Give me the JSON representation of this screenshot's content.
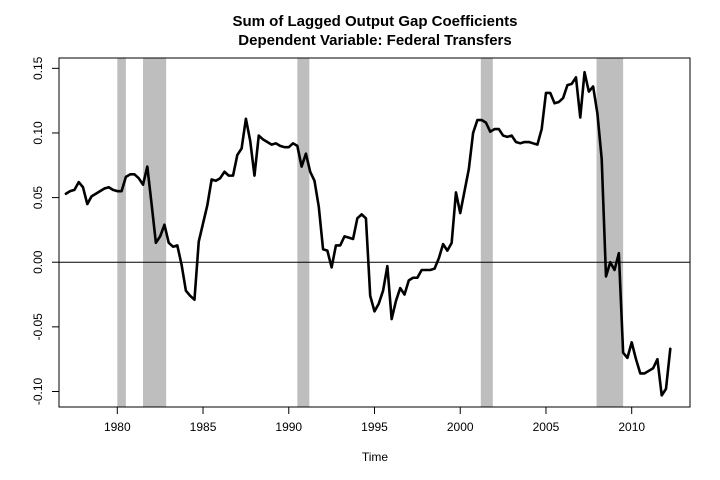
{
  "chart_data": {
    "type": "line",
    "title": "Sum of Lagged Output Gap Coefficients",
    "subtitle": "Dependent Variable: Federal Transfers",
    "xlabel": "Time",
    "ylabel": "",
    "xlim": [
      1976.6,
      2013.4
    ],
    "ylim": [
      -0.112,
      0.158
    ],
    "x_ticks": [
      1980,
      1985,
      1990,
      1995,
      2000,
      2005,
      2010
    ],
    "y_ticks": [
      -0.1,
      -0.05,
      0.0,
      0.05,
      0.1,
      0.15
    ],
    "x_tick_labels": [
      "1980",
      "1985",
      "1990",
      "1995",
      "2000",
      "2005",
      "2010"
    ],
    "y_tick_labels": [
      "-0.10",
      "-0.05",
      "0.00",
      "0.05",
      "0.10",
      "0.15"
    ],
    "grid": false,
    "reference_line": {
      "y": 0,
      "color": "#000000"
    },
    "recession_bands": [
      [
        1980.0,
        1980.5
      ],
      [
        1981.5,
        1982.85
      ],
      [
        1990.5,
        1991.2
      ],
      [
        2001.2,
        2001.9
      ],
      [
        2007.95,
        2009.5
      ]
    ],
    "colors": {
      "series": "#000000",
      "band": "#bebebe"
    },
    "series": [
      {
        "x": [
          1977.0,
          1977.25,
          1977.5,
          1977.75,
          1978.0,
          1978.25,
          1978.5,
          1978.75,
          1979.0,
          1979.25,
          1979.5,
          1979.75,
          1980.0,
          1980.25,
          1980.5,
          1980.75,
          1981.0,
          1981.25,
          1981.5,
          1981.75,
          1982.0,
          1982.25,
          1982.5,
          1982.75,
          1983.0,
          1983.25,
          1983.5,
          1983.75,
          1984.0,
          1984.25,
          1984.5,
          1984.75,
          1985.0,
          1985.25,
          1985.5,
          1985.75,
          1986.0,
          1986.25,
          1986.5,
          1986.75,
          1987.0,
          1987.25,
          1987.5,
          1987.75,
          1988.0,
          1988.25,
          1988.5,
          1988.75,
          1989.0,
          1989.25,
          1989.5,
          1989.75,
          1990.0,
          1990.25,
          1990.5,
          1990.75,
          1991.0,
          1991.25,
          1991.5,
          1991.75,
          1992.0,
          1992.25,
          1992.5,
          1992.75,
          1993.0,
          1993.25,
          1993.5,
          1993.75,
          1994.0,
          1994.25,
          1994.5,
          1994.75,
          1995.0,
          1995.25,
          1995.5,
          1995.75,
          1996.0,
          1996.25,
          1996.5,
          1996.75,
          1997.0,
          1997.25,
          1997.5,
          1997.75,
          1998.0,
          1998.25,
          1998.5,
          1998.75,
          1999.0,
          1999.25,
          1999.5,
          1999.75,
          2000.0,
          2000.25,
          2000.5,
          2000.75,
          2001.0,
          2001.25,
          2001.5,
          2001.75,
          2002.0,
          2002.25,
          2002.5,
          2002.75,
          2003.0,
          2003.25,
          2003.5,
          2003.75,
          2004.0,
          2004.25,
          2004.5,
          2004.75,
          2005.0,
          2005.25,
          2005.5,
          2005.75,
          2006.0,
          2006.25,
          2006.5,
          2006.75,
          2007.0,
          2007.25,
          2007.5,
          2007.75,
          2008.0,
          2008.25,
          2008.5,
          2008.75,
          2009.0,
          2009.25,
          2009.5,
          2009.75,
          2010.0,
          2010.25,
          2010.5,
          2010.75,
          2011.0,
          2011.25,
          2011.5,
          2011.75,
          2012.0,
          2012.25
        ],
        "y": [
          0.053,
          0.055,
          0.056,
          0.062,
          0.058,
          0.045,
          0.051,
          0.053,
          0.055,
          0.057,
          0.058,
          0.056,
          0.055,
          0.055,
          0.066,
          0.068,
          0.068,
          0.065,
          0.06,
          0.074,
          0.045,
          0.015,
          0.02,
          0.029,
          0.015,
          0.012,
          0.013,
          -0.002,
          -0.022,
          -0.026,
          -0.029,
          0.016,
          0.03,
          0.044,
          0.064,
          0.063,
          0.065,
          0.07,
          0.067,
          0.067,
          0.083,
          0.088,
          0.111,
          0.094,
          0.067,
          0.098,
          0.095,
          0.093,
          0.091,
          0.092,
          0.09,
          0.089,
          0.089,
          0.092,
          0.09,
          0.074,
          0.084,
          0.07,
          0.063,
          0.043,
          0.01,
          0.009,
          -0.004,
          0.013,
          0.013,
          0.02,
          0.019,
          0.018,
          0.034,
          0.037,
          0.034,
          -0.026,
          -0.038,
          -0.032,
          -0.022,
          -0.003,
          -0.044,
          -0.03,
          -0.02,
          -0.025,
          -0.014,
          -0.012,
          -0.012,
          -0.006,
          -0.006,
          -0.006,
          -0.005,
          0.003,
          0.014,
          0.009,
          0.015,
          0.054,
          0.038,
          0.055,
          0.072,
          0.1,
          0.11,
          0.11,
          0.108,
          0.101,
          0.103,
          0.103,
          0.098,
          0.097,
          0.098,
          0.093,
          0.092,
          0.093,
          0.093,
          0.092,
          0.091,
          0.103,
          0.131,
          0.131,
          0.123,
          0.124,
          0.127,
          0.137,
          0.138,
          0.143,
          0.112,
          0.147,
          0.132,
          0.136,
          0.115,
          0.08,
          -0.011,
          0.0,
          -0.006,
          0.007,
          -0.07,
          -0.074,
          -0.062,
          -0.075,
          -0.086,
          -0.086,
          -0.084,
          -0.082,
          -0.075,
          -0.103,
          -0.098,
          -0.067
        ]
      }
    ]
  }
}
